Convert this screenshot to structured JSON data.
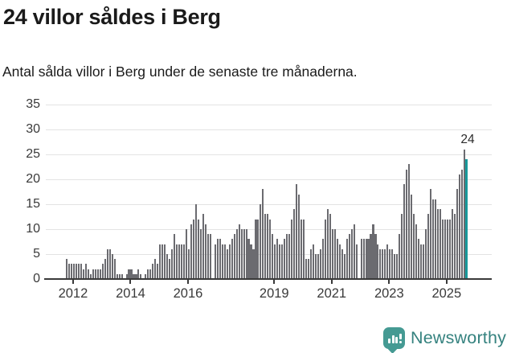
{
  "header": {
    "title": "24 villor såldes i Berg",
    "subtitle": "Antal sålda villor i Berg under de senaste tre månaderna."
  },
  "chart_data": {
    "type": "bar",
    "title": "24 villor såldes i Berg",
    "subtitle": "Antal sålda villor i Berg under de senaste tre månaderna.",
    "frequency": "monthly",
    "start": "2011-10",
    "end": "2025-09",
    "ylim": [
      0,
      35
    ],
    "y_ticks": [
      0,
      5,
      10,
      15,
      20,
      25,
      30,
      35
    ],
    "grid": true,
    "bar_color": "#6b6b70",
    "highlight_color": "#17989a",
    "x_ticks": [
      {
        "label": "2012",
        "index": 3
      },
      {
        "label": "2014",
        "index": 27
      },
      {
        "label": "2016",
        "index": 51
      },
      {
        "label": "2019",
        "index": 87
      },
      {
        "label": "2021",
        "index": 111
      },
      {
        "label": "2023",
        "index": 135
      },
      {
        "label": "2025",
        "index": 159
      }
    ],
    "values": [
      4,
      3,
      3,
      3,
      3,
      3,
      3,
      2,
      3,
      2,
      1,
      2,
      2,
      2,
      2,
      3,
      4,
      6,
      6,
      5,
      4,
      1,
      1,
      1,
      0,
      1,
      2,
      2,
      1,
      1,
      2,
      1,
      0,
      1,
      2,
      2,
      3,
      4,
      3,
      7,
      7,
      7,
      5,
      4,
      6,
      9,
      7,
      7,
      7,
      7,
      10,
      6,
      11,
      12,
      15,
      12,
      10,
      13,
      11,
      9,
      9,
      0,
      7,
      8,
      8,
      7,
      7,
      6,
      7,
      8,
      9,
      10,
      11,
      10,
      10,
      10,
      8,
      7,
      6,
      12,
      12,
      15,
      18,
      13,
      13,
      12,
      9,
      7,
      8,
      7,
      7,
      8,
      9,
      9,
      12,
      14,
      19,
      17,
      12,
      12,
      4,
      4,
      6,
      7,
      5,
      5,
      6,
      8,
      12,
      14,
      13,
      10,
      10,
      8,
      7,
      6,
      5,
      8,
      9,
      10,
      11,
      7,
      0,
      8,
      8,
      8,
      8,
      9,
      11,
      9,
      7,
      6,
      6,
      6,
      7,
      6,
      6,
      5,
      5,
      9,
      13,
      19,
      22,
      23,
      17,
      13,
      11,
      8,
      7,
      7,
      10,
      13,
      18,
      16,
      16,
      14,
      14,
      12,
      12,
      12,
      12,
      14,
      13,
      18,
      21,
      22,
      26,
      24
    ],
    "highlight": {
      "index": 167,
      "value": 24,
      "label": "24"
    }
  },
  "footer": {
    "logo_text": "Newsworthy",
    "brand_color": "#35827f",
    "icon_color": "#459a93"
  }
}
